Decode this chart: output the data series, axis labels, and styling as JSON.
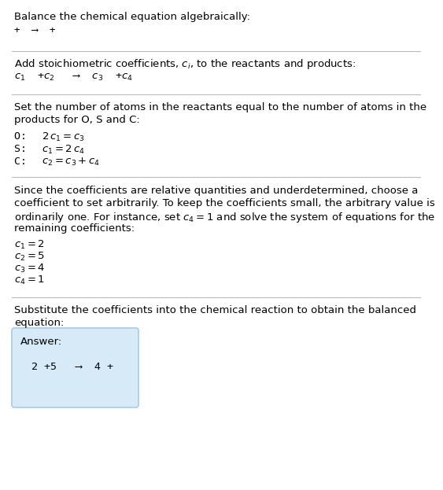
{
  "title": "Balance the chemical equation algebraically:",
  "line1": "+  ⟶  +",
  "section1_title": "Add stoichiometric coefficients, $c_i$, to the reactants and products:",
  "section1_eq": "$c_1$  +$c_2$   ⟶  $c_3$  +$c_4$",
  "s2_line1": "Set the number of atoms in the reactants equal to the number of atoms in the",
  "s2_line2": "products for O, S and C:",
  "s2_eqs": [
    [
      "O:  ",
      "$2\\,c_1 = c_3$"
    ],
    [
      "S:  ",
      "$c_1 = 2\\,c_4$"
    ],
    [
      "C:  ",
      "$c_2 = c_3 + c_4$"
    ]
  ],
  "s3_lines": [
    "Since the coefficients are relative quantities and underdetermined, choose a",
    "coefficient to set arbitrarily. To keep the coefficients small, the arbitrary value is",
    "ordinarily one. For instance, set $c_4 = 1$ and solve the system of equations for the",
    "remaining coefficients:"
  ],
  "s3_coeffs": [
    "$c_1 = 2$",
    "$c_2 = 5$",
    "$c_3 = 4$",
    "$c_4 = 1$"
  ],
  "s4_line1": "Substitute the coefficients into the chemical reaction to obtain the balanced",
  "s4_line2": "equation:",
  "answer_label": "Answer:",
  "answer_eq": "2 +5   ⟶  4 +",
  "bg_color": "#ffffff",
  "answer_box_color": "#d6eaf8",
  "answer_box_border": "#a9cce3",
  "divider_color": "#bbbbbb"
}
